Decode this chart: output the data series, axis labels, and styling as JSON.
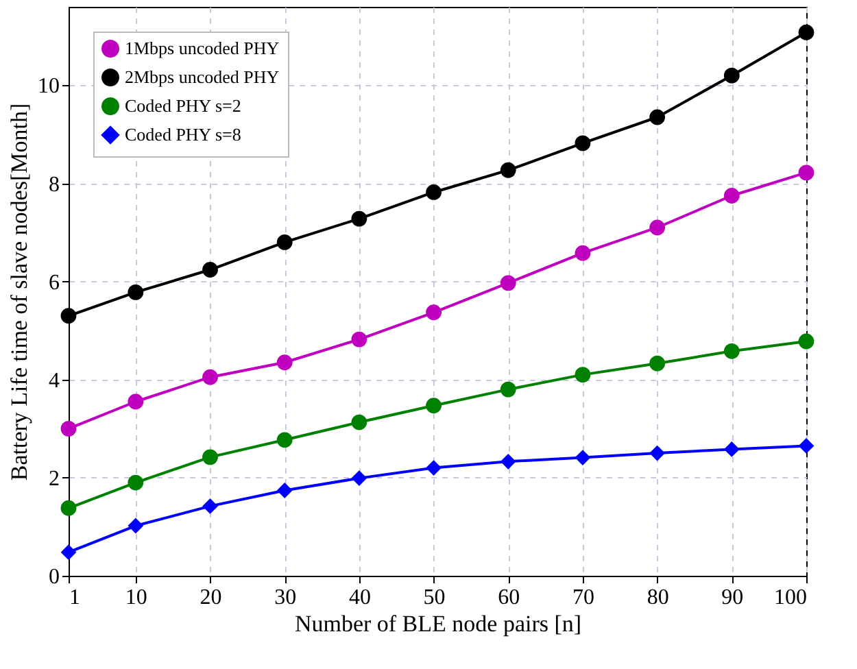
{
  "chart_data": {
    "type": "line",
    "xlabel": "Number of BLE node pairs [n]",
    "ylabel": "Battery Life time of slave nodes[Month]",
    "x": [
      1,
      10,
      20,
      30,
      40,
      50,
      60,
      70,
      80,
      90,
      100
    ],
    "series": [
      {
        "name": "1Mbps uncoded PHY",
        "color": "#bf00bf",
        "marker": "circle",
        "values": [
          3.0,
          3.55,
          4.05,
          4.35,
          4.82,
          5.37,
          5.97,
          6.58,
          7.1,
          7.75,
          8.22
        ]
      },
      {
        "name": "2Mbps uncoded PHY",
        "color": "#000000",
        "marker": "circle",
        "values": [
          5.3,
          5.78,
          6.24,
          6.8,
          7.28,
          7.82,
          8.27,
          8.82,
          9.35,
          10.2,
          11.08
        ]
      },
      {
        "name": "Coded PHY s=2",
        "color": "#008000",
        "marker": "circle",
        "values": [
          1.38,
          1.9,
          2.42,
          2.77,
          3.13,
          3.47,
          3.8,
          4.1,
          4.33,
          4.58,
          4.78
        ]
      },
      {
        "name": "Coded PHY s=8",
        "color": "#0000ff",
        "marker": "diamond",
        "values": [
          0.48,
          1.02,
          1.42,
          1.74,
          1.99,
          2.2,
          2.33,
          2.41,
          2.5,
          2.58,
          2.65
        ]
      }
    ],
    "xlim": [
      1,
      100
    ],
    "xticks": [
      1,
      10,
      20,
      30,
      40,
      50,
      60,
      70,
      80,
      90,
      100
    ],
    "ylim": [
      0,
      11.6
    ],
    "yticks": [
      0,
      2,
      4,
      6,
      8,
      10
    ],
    "grid": true,
    "legend": "top left",
    "line_style": "solid"
  }
}
